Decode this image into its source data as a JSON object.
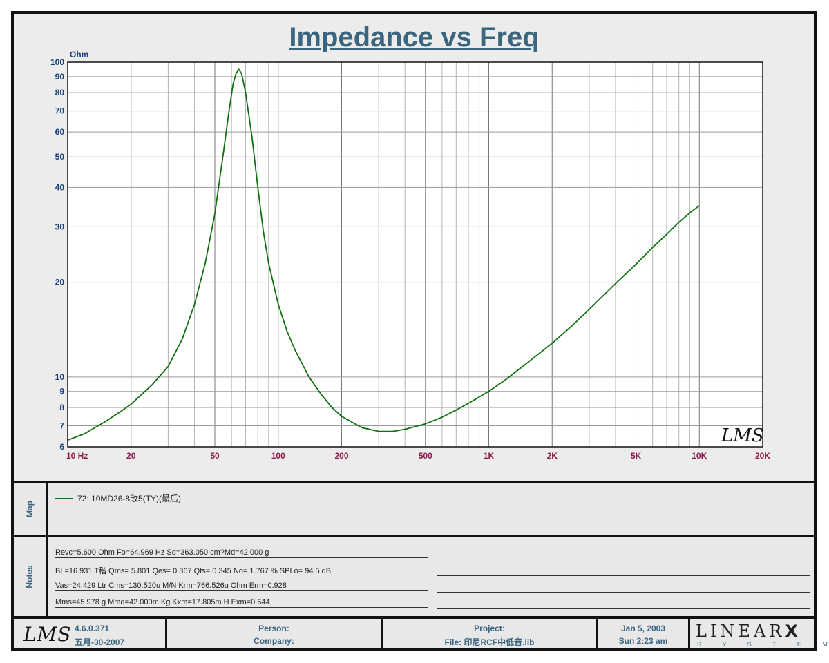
{
  "title": "Impedance vs Freq",
  "chart_data": {
    "type": "line",
    "title": "Impedance vs Freq",
    "xscale": "log",
    "yscale": "log",
    "xlim": [
      10,
      20000
    ],
    "ylim": [
      6,
      100
    ],
    "ylabel": "Ohm",
    "x_ticks": [
      {
        "value": 10,
        "label": "10  Hz"
      },
      {
        "value": 20,
        "label": "20"
      },
      {
        "value": 50,
        "label": "50"
      },
      {
        "value": 100,
        "label": "100"
      },
      {
        "value": 200,
        "label": "200"
      },
      {
        "value": 500,
        "label": "500"
      },
      {
        "value": 1000,
        "label": "1K"
      },
      {
        "value": 2000,
        "label": "2K"
      },
      {
        "value": 5000,
        "label": "5K"
      },
      {
        "value": 10000,
        "label": "10K"
      },
      {
        "value": 20000,
        "label": "20K"
      }
    ],
    "y_ticks": [
      6,
      7,
      8,
      9,
      10,
      20,
      30,
      40,
      50,
      60,
      70,
      80,
      90,
      100
    ],
    "grid": true,
    "series": [
      {
        "name": "72:  10MD26-8改5(TY)(最后)",
        "color": "#107010",
        "points": [
          [
            10,
            6.3
          ],
          [
            12,
            6.6
          ],
          [
            15,
            7.2
          ],
          [
            18,
            7.8
          ],
          [
            20,
            8.2
          ],
          [
            25,
            9.4
          ],
          [
            30,
            10.8
          ],
          [
            35,
            13.2
          ],
          [
            40,
            17.0
          ],
          [
            45,
            23.0
          ],
          [
            50,
            33.0
          ],
          [
            55,
            52.0
          ],
          [
            58,
            68.0
          ],
          [
            61,
            85.0
          ],
          [
            63,
            92.0
          ],
          [
            65,
            95.0
          ],
          [
            67,
            92.0
          ],
          [
            70,
            80.0
          ],
          [
            75,
            58.0
          ],
          [
            80,
            40.0
          ],
          [
            85,
            29.0
          ],
          [
            90,
            23.0
          ],
          [
            100,
            17.0
          ],
          [
            110,
            14.0
          ],
          [
            120,
            12.2
          ],
          [
            140,
            10.0
          ],
          [
            160,
            8.8
          ],
          [
            180,
            8.0
          ],
          [
            200,
            7.5
          ],
          [
            250,
            6.9
          ],
          [
            300,
            6.72
          ],
          [
            350,
            6.72
          ],
          [
            400,
            6.82
          ],
          [
            500,
            7.1
          ],
          [
            600,
            7.45
          ],
          [
            700,
            7.85
          ],
          [
            800,
            8.25
          ],
          [
            1000,
            9.0
          ],
          [
            1200,
            9.8
          ],
          [
            1500,
            11.0
          ],
          [
            2000,
            12.8
          ],
          [
            2500,
            14.6
          ],
          [
            3000,
            16.4
          ],
          [
            4000,
            19.8
          ],
          [
            5000,
            22.8
          ],
          [
            6000,
            25.8
          ],
          [
            7000,
            28.4
          ],
          [
            8000,
            31.0
          ],
          [
            9000,
            33.2
          ],
          [
            10000,
            35.0
          ]
        ]
      }
    ]
  },
  "sections": {
    "map": "Map",
    "notes": "Notes"
  },
  "notes": [
    "Revc=5.600 Ohm  Fo=64.969 Hz  Sd=363.050 cm?Md=42.000 g",
    "BL=16.931 T稭  Qms= 5.801  Qes= 0.367  Qts= 0.345  No= 1.767 %  SPLo= 94.5 dB",
    "Vas=24.429 Ltr  Cms=130.520u M/N  Krm=766.526u Ohm  Erm=0.928",
    "Mms=45.978 g  Mmd=42.000m Kg  Kxm=17.805m H  Exm=0.644"
  ],
  "footer": {
    "logo_text": "LMS",
    "watermark": "LMS",
    "version": "4.6.0.371",
    "build_date": "五月-30-2007",
    "person": "Person:",
    "company": "Company:",
    "project": "Project:",
    "file": "File: 印尼RCF中低音.lib",
    "date": "Jan  5, 2003",
    "time": "Sun  2:23 am",
    "brand_top": "LINEAR",
    "brand_x": "X",
    "brand_bottom": "S Y S T E M S"
  },
  "colors": {
    "curve": "#107010",
    "title": "#3b6680",
    "y_ticks": "#1a3f7a",
    "x_ticks": "#8b1a4a"
  }
}
